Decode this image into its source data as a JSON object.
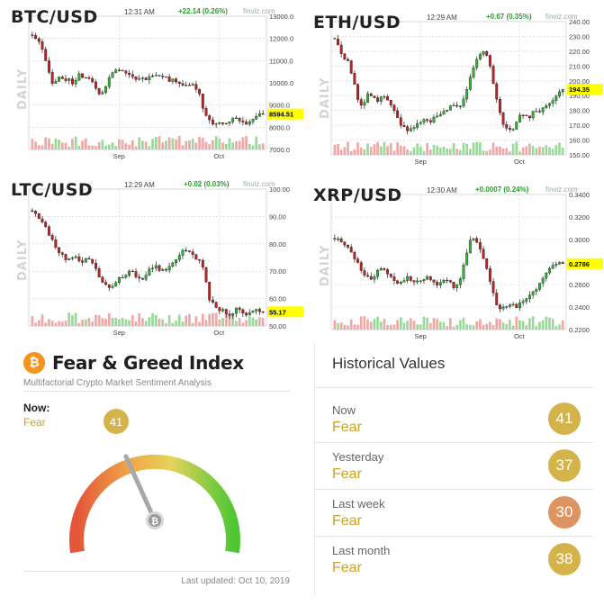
{
  "panels": [
    {
      "key": "btc",
      "pair": "BTC/USD",
      "time": "12:31 AM",
      "change": "+22.14 (0.26%)",
      "source": "finviz.com",
      "daily": "DAILY",
      "y_ticks": [
        "13000.0",
        "12000.0",
        "11000.0",
        "10000.0",
        "9000.0",
        "8000.0",
        "7000.0"
      ],
      "y_min": 7000,
      "y_max": 13000,
      "price_label": "8594.51",
      "price": 8594.51,
      "x_ticks": [
        "Sep",
        "Oct"
      ],
      "path": [
        12100,
        11950,
        11700,
        11200,
        10400,
        9900,
        10300,
        10250,
        10050,
        10150,
        9900,
        10400,
        10300,
        10250,
        10200,
        9700,
        9550,
        9650,
        10100,
        10500,
        10650,
        10450,
        10500,
        10350,
        10200,
        10150,
        10250,
        10100,
        10300,
        10350,
        10400,
        10250,
        10200,
        10100,
        10150,
        10000,
        9900,
        9800,
        9950,
        9800,
        9500,
        8600,
        8350,
        8200,
        8150,
        8300,
        8100,
        8250,
        8450,
        8300,
        8200,
        8150,
        8300,
        8450,
        8550,
        8594
      ]
    },
    {
      "key": "eth",
      "pair": "ETH/USD",
      "time": "12:29 AM",
      "change": "+0.67 (0.35%)",
      "source": "finviz.com",
      "daily": "DAILY",
      "y_ticks": [
        "240.00",
        "230.00",
        "220.00",
        "210.00",
        "200.00",
        "190.00",
        "180.00",
        "170.00",
        "160.00",
        "150.00"
      ],
      "y_min": 150,
      "y_max": 240,
      "price_label": "194.35",
      "price": 194.35,
      "x_ticks": [
        "Sep",
        "Oct"
      ],
      "path": [
        228,
        222,
        215,
        212,
        200,
        185,
        183,
        192,
        189,
        186,
        190,
        188,
        183,
        177,
        170,
        167,
        168,
        170,
        172,
        174,
        171,
        175,
        176,
        180,
        182,
        184,
        181,
        187,
        197,
        207,
        215,
        220,
        218,
        205,
        190,
        175,
        168,
        166,
        170,
        178,
        176,
        174,
        180,
        179,
        182,
        185,
        188,
        192,
        194
      ]
    },
    {
      "key": "ltc",
      "pair": "LTC/USD",
      "time": "12:29 AM",
      "change": "+0.02 (0.03%)",
      "source": "finviz.com",
      "daily": "DAILY",
      "y_ticks": [
        "100.00",
        "90.00",
        "80.00",
        "70.00",
        "60.00",
        "50.00"
      ],
      "y_min": 50,
      "y_max": 100,
      "price_label": "55.17",
      "price": 55.17,
      "x_ticks": [
        "Sep",
        "Oct"
      ],
      "path": [
        92,
        90,
        88,
        84,
        80,
        77,
        75,
        74,
        76,
        73,
        75,
        74,
        70,
        66,
        64,
        65,
        67,
        68,
        70,
        69,
        67,
        68,
        71,
        72,
        70,
        71,
        73,
        75,
        77,
        78,
        76,
        74,
        70,
        60,
        57,
        56,
        55,
        54,
        56,
        55,
        54,
        55,
        56,
        55.17
      ]
    },
    {
      "key": "xrp",
      "pair": "XRP/USD",
      "time": "12:30 AM",
      "change": "+0.0007 (0.24%)",
      "source": "finviz.com",
      "daily": "DAILY",
      "y_ticks": [
        "0.3400",
        "0.3200",
        "0.3000",
        "0.2800",
        "0.2600",
        "0.2400",
        "0.2200"
      ],
      "y_min": 0.22,
      "y_max": 0.34,
      "price_label": "0.2786",
      "price": 0.2786,
      "x_ticks": [
        "Sep",
        "Oct"
      ],
      "path": [
        0.301,
        0.299,
        0.296,
        0.291,
        0.282,
        0.274,
        0.268,
        0.265,
        0.27,
        0.275,
        0.271,
        0.266,
        0.262,
        0.263,
        0.266,
        0.264,
        0.262,
        0.265,
        0.267,
        0.261,
        0.259,
        0.263,
        0.262,
        0.258,
        0.262,
        0.28,
        0.298,
        0.3,
        0.292,
        0.28,
        0.262,
        0.245,
        0.238,
        0.24,
        0.243,
        0.239,
        0.244,
        0.248,
        0.252,
        0.256,
        0.265,
        0.272,
        0.277,
        0.279,
        0.2786
      ]
    }
  ],
  "fear_greed": {
    "logo": "₿",
    "title": "Fear & Greed Index",
    "subtitle": "Multifactorial Crypto Market Sentiment Analysis",
    "now_label": "Now:",
    "now_class": "Fear",
    "value": 41,
    "value_text": "41",
    "updated": "Last updated: Oct 10, 2019"
  },
  "historical": {
    "title": "Historical Values",
    "rows": [
      {
        "period": "Now",
        "class": "Fear",
        "value": "41",
        "color": "#d4b44a"
      },
      {
        "period": "Yesterday",
        "class": "Fear",
        "value": "37",
        "color": "#d4b44a"
      },
      {
        "period": "Last week",
        "class": "Fear",
        "value": "30",
        "color": "#de9460"
      },
      {
        "period": "Last month",
        "class": "Fear",
        "value": "38",
        "color": "#d4b44a"
      }
    ]
  },
  "colors": {
    "up": "#2fb52f",
    "down": "#c42020",
    "grid": "#cfcfcf",
    "price_box": "#ffff00",
    "vol_up": "#9bd99b",
    "vol_down": "#f2a7a7"
  }
}
